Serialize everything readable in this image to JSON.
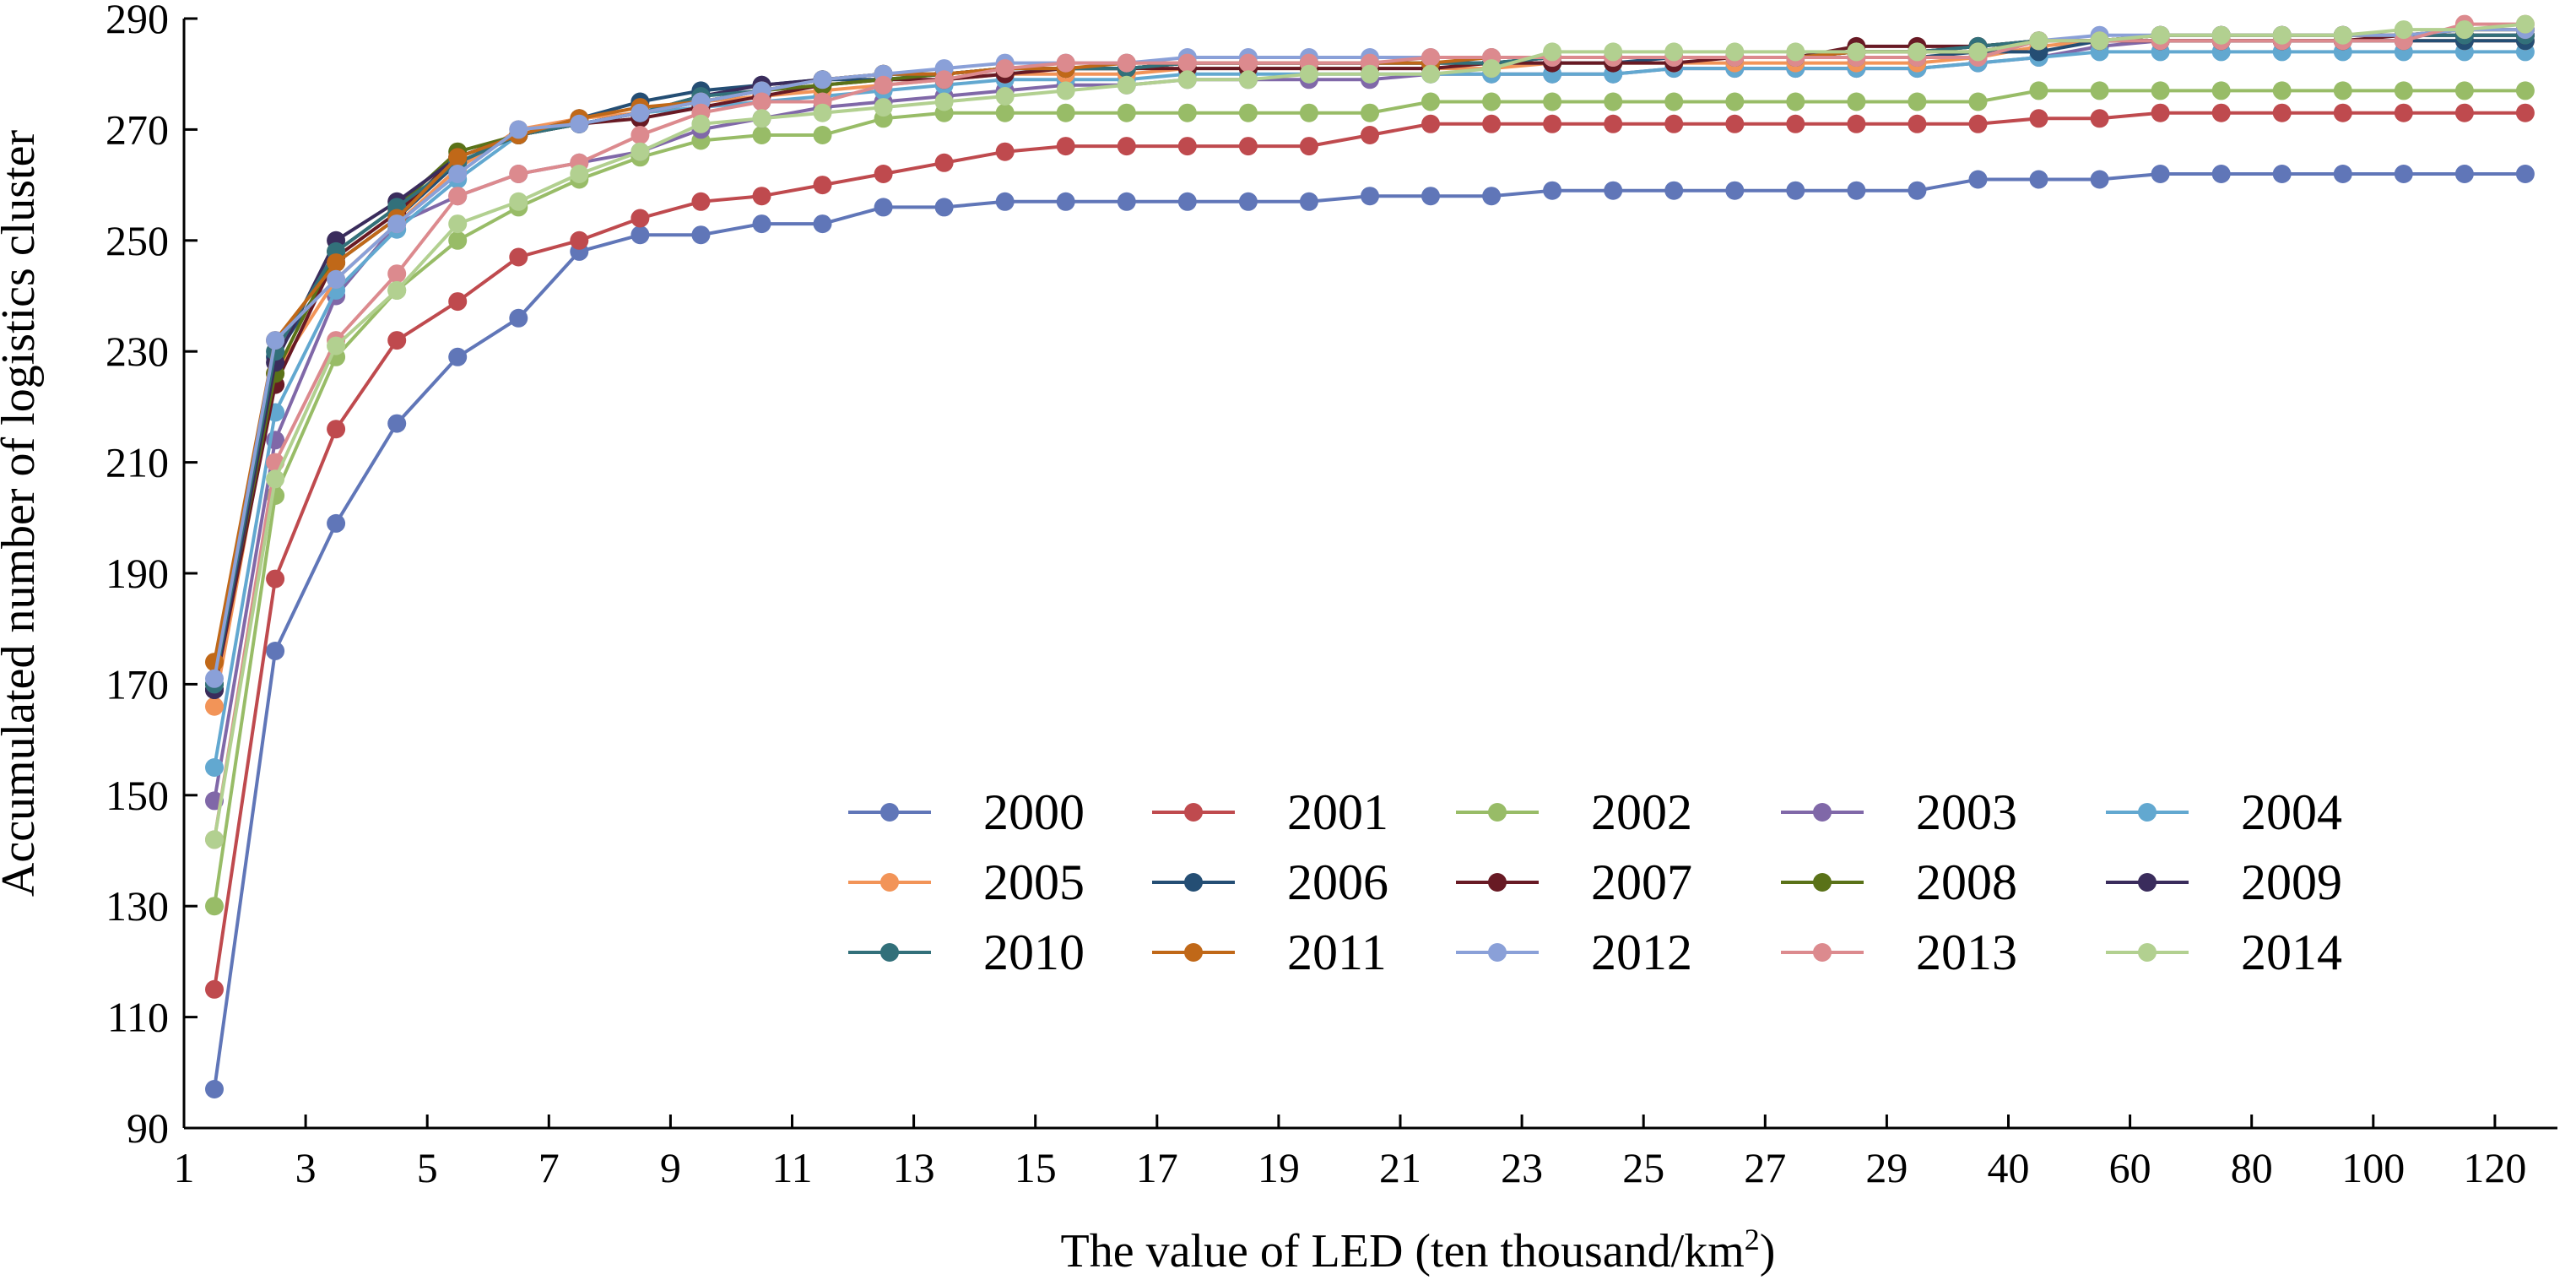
{
  "chart_data": {
    "type": "line",
    "title": "",
    "xlabel": "The value of LED (ten thousand/km",
    "xlabel_superscript": "2",
    "xlabel_suffix": ")",
    "ylabel": "Accumulated number of logistics cluster",
    "ylim": [
      90,
      290
    ],
    "yticks": [
      90,
      110,
      130,
      150,
      170,
      190,
      210,
      230,
      250,
      270,
      290
    ],
    "x_categories": [
      1.5,
      2.5,
      3.5,
      4.5,
      5.5,
      6.5,
      7.5,
      8.5,
      9.5,
      10.5,
      11.5,
      12.5,
      13.5,
      14.5,
      15.5,
      16.5,
      17.5,
      18.5,
      19.5,
      20.5,
      21.5,
      22.5,
      23.5,
      24.5,
      25.5,
      26.5,
      27.5,
      28.5,
      29.5,
      35,
      45,
      55,
      65,
      75,
      85,
      95,
      105,
      115,
      125
    ],
    "xticks": [
      "1",
      "3",
      "5",
      "7",
      "9",
      "11",
      "13",
      "15",
      "17",
      "19",
      "21",
      "23",
      "25",
      "27",
      "29",
      "40",
      "60",
      "80",
      "100",
      "120"
    ],
    "legend_position": "center-right",
    "legend_columns": 5,
    "marker": "circle",
    "grid": false,
    "series": [
      {
        "name": "2000",
        "color": "#6076b8",
        "values": [
          97,
          176,
          199,
          217,
          229,
          236,
          248,
          251,
          251,
          253,
          253,
          256,
          256,
          257,
          257,
          257,
          257,
          257,
          257,
          258,
          258,
          258,
          259,
          259,
          259,
          259,
          259,
          259,
          259,
          261,
          261,
          261,
          262,
          262,
          262,
          262,
          262,
          262,
          262
        ]
      },
      {
        "name": "2001",
        "color": "#bf4a4e",
        "values": [
          115,
          189,
          216,
          232,
          239,
          247,
          250,
          254,
          257,
          258,
          260,
          262,
          264,
          266,
          267,
          267,
          267,
          267,
          267,
          269,
          271,
          271,
          271,
          271,
          271,
          271,
          271,
          271,
          271,
          271,
          272,
          272,
          273,
          273,
          273,
          273,
          273,
          273,
          273
        ]
      },
      {
        "name": "2002",
        "color": "#98bc67",
        "values": [
          130,
          204,
          229,
          241,
          250,
          256,
          261,
          265,
          268,
          269,
          269,
          272,
          273,
          273,
          273,
          273,
          273,
          273,
          273,
          273,
          275,
          275,
          275,
          275,
          275,
          275,
          275,
          275,
          275,
          275,
          277,
          277,
          277,
          277,
          277,
          277,
          277,
          277,
          277
        ]
      },
      {
        "name": "2003",
        "color": "#8068a8",
        "values": [
          149,
          214,
          240,
          253,
          258,
          262,
          264,
          266,
          270,
          272,
          274,
          275,
          276,
          277,
          278,
          278,
          279,
          279,
          279,
          279,
          280,
          280,
          280,
          280,
          281,
          281,
          281,
          281,
          281,
          282,
          283,
          285,
          286,
          286,
          286,
          286,
          286,
          286,
          286
        ]
      },
      {
        "name": "2004",
        "color": "#62a8d0",
        "values": [
          155,
          219,
          241,
          252,
          261,
          269,
          271,
          273,
          274,
          275,
          276,
          277,
          278,
          279,
          279,
          279,
          280,
          280,
          280,
          280,
          280,
          280,
          280,
          280,
          281,
          281,
          281,
          281,
          281,
          282,
          283,
          284,
          284,
          284,
          284,
          284,
          284,
          284,
          284
        ]
      },
      {
        "name": "2005",
        "color": "#f29458",
        "values": [
          166,
          226,
          243,
          253,
          263,
          270,
          272,
          273,
          275,
          276,
          277,
          278,
          279,
          280,
          280,
          280,
          281,
          281,
          281,
          281,
          281,
          281,
          282,
          282,
          282,
          282,
          282,
          282,
          282,
          283,
          285,
          286,
          286,
          286,
          286,
          286,
          286,
          286,
          286
        ]
      },
      {
        "name": "2006",
        "color": "#244e74",
        "values": [
          169,
          229,
          246,
          254,
          264,
          269,
          272,
          275,
          277,
          278,
          279,
          279,
          280,
          281,
          281,
          281,
          282,
          282,
          282,
          282,
          282,
          282,
          282,
          282,
          283,
          283,
          283,
          283,
          283,
          284,
          284,
          286,
          286,
          286,
          286,
          286,
          286,
          286,
          286
        ]
      },
      {
        "name": "2007",
        "color": "#681a24",
        "values": [
          169,
          224,
          247,
          255,
          265,
          269,
          271,
          272,
          274,
          276,
          278,
          279,
          279,
          280,
          281,
          281,
          281,
          281,
          281,
          281,
          281,
          282,
          282,
          282,
          282,
          283,
          283,
          285,
          285,
          285,
          286,
          286,
          286,
          286,
          286,
          286,
          287,
          287,
          287
        ]
      },
      {
        "name": "2008",
        "color": "#5a7218",
        "values": [
          170,
          226,
          248,
          256,
          266,
          269,
          271,
          273,
          275,
          277,
          278,
          279,
          280,
          281,
          281,
          281,
          282,
          282,
          282,
          282,
          282,
          282,
          283,
          283,
          283,
          283,
          283,
          284,
          284,
          285,
          286,
          286,
          287,
          287,
          287,
          287,
          287,
          288,
          288
        ]
      },
      {
        "name": "2009",
        "color": "#3a2c5c",
        "values": [
          169,
          228,
          250,
          257,
          265,
          269,
          271,
          273,
          276,
          278,
          279,
          280,
          280,
          281,
          281,
          281,
          282,
          282,
          282,
          282,
          282,
          282,
          283,
          283,
          283,
          283,
          283,
          284,
          284,
          285,
          286,
          286,
          287,
          287,
          287,
          287,
          287,
          287,
          287
        ]
      },
      {
        "name": "2010",
        "color": "#32707a",
        "values": [
          170,
          230,
          248,
          256,
          264,
          269,
          271,
          273,
          276,
          277,
          279,
          280,
          280,
          281,
          281,
          281,
          282,
          282,
          282,
          282,
          282,
          282,
          283,
          283,
          283,
          283,
          283,
          284,
          284,
          285,
          286,
          286,
          287,
          287,
          287,
          287,
          287,
          287,
          287
        ]
      },
      {
        "name": "2011",
        "color": "#c06818",
        "values": [
          174,
          232,
          246,
          254,
          265,
          269,
          272,
          274,
          275,
          277,
          279,
          280,
          280,
          281,
          281,
          282,
          282,
          282,
          282,
          282,
          282,
          283,
          283,
          283,
          283,
          283,
          283,
          284,
          284,
          284,
          286,
          286,
          287,
          287,
          287,
          287,
          287,
          288,
          288
        ]
      },
      {
        "name": "2012",
        "color": "#8aa0d8",
        "values": [
          171,
          232,
          243,
          253,
          262,
          270,
          271,
          273,
          275,
          277,
          279,
          280,
          281,
          282,
          282,
          282,
          283,
          283,
          283,
          283,
          283,
          283,
          283,
          283,
          283,
          283,
          283,
          283,
          283,
          283,
          286,
          287,
          287,
          287,
          287,
          287,
          287,
          288,
          288
        ]
      },
      {
        "name": "2013",
        "color": "#dc8a8e",
        "values": [
          142,
          210,
          232,
          244,
          258,
          262,
          264,
          269,
          273,
          275,
          275,
          278,
          279,
          281,
          282,
          282,
          282,
          282,
          282,
          282,
          283,
          283,
          283,
          283,
          283,
          283,
          283,
          283,
          283,
          283,
          286,
          286,
          286,
          286,
          286,
          286,
          286,
          289,
          289
        ]
      },
      {
        "name": "2014",
        "color": "#b2d090",
        "values": [
          142,
          207,
          231,
          241,
          253,
          257,
          262,
          266,
          271,
          272,
          273,
          274,
          275,
          276,
          277,
          278,
          279,
          279,
          280,
          280,
          280,
          281,
          284,
          284,
          284,
          284,
          284,
          284,
          284,
          284,
          286,
          286,
          287,
          287,
          287,
          287,
          288,
          288,
          289
        ]
      }
    ]
  }
}
